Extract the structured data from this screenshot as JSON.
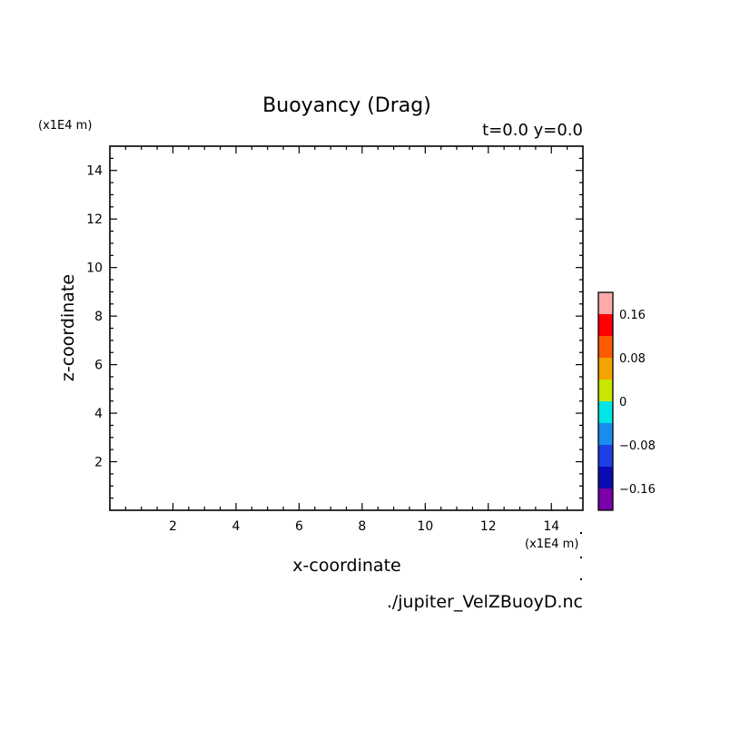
{
  "chart_data": {
    "type": "heatmap",
    "title": "Buoyancy (Drag)",
    "subtitle": "t=0.0 y=0.0",
    "xlabel": "x-coordinate",
    "ylabel": "z-coordinate",
    "x_unit": "(x1E4 m)",
    "y_unit": "(x1E4 m)",
    "xlim": [
      0,
      15
    ],
    "ylim": [
      0,
      15
    ],
    "x_ticks": [
      2,
      4,
      6,
      8,
      10,
      12,
      14
    ],
    "y_ticks": [
      2,
      4,
      6,
      8,
      10,
      12,
      14
    ],
    "x_tick_labels": [
      "2",
      "4",
      "6",
      "8",
      "10",
      "12",
      "14"
    ],
    "y_tick_labels": [
      "2",
      "4",
      "6",
      "8",
      "10",
      "12",
      "14"
    ],
    "colorbar": {
      "levels": [
        -0.2,
        -0.16,
        -0.12,
        -0.08,
        -0.04,
        0,
        0.04,
        0.08,
        0.12,
        0.16,
        0.2
      ],
      "colors": [
        "#7a00a8",
        "#0b0bb4",
        "#1f3fe6",
        "#1a8cf0",
        "#00e5e5",
        "#c8e600",
        "#f5a300",
        "#ff5a00",
        "#ff0000",
        "#ffaaaa"
      ],
      "tick_values": [
        -0.16,
        -0.08,
        0,
        0.08,
        0.16
      ],
      "tick_labels": [
        "−0.16",
        "−0.08",
        "0",
        "0.08",
        "0.16"
      ]
    },
    "data": [],
    "grid": false
  },
  "footer": {
    "filename": "./jupiter_VelZBuoyD.nc"
  }
}
